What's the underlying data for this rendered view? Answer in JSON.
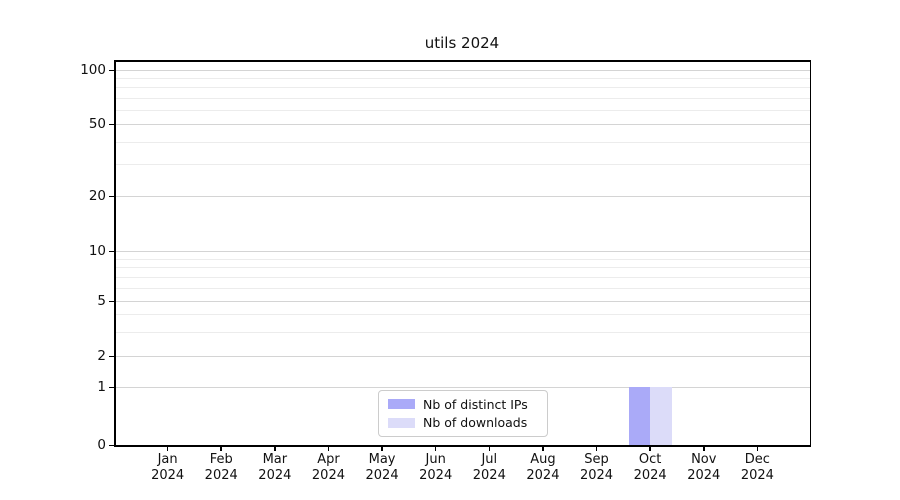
{
  "chart_data": {
    "type": "bar",
    "title": "utils 2024",
    "categories": [
      "Jan",
      "Feb",
      "Mar",
      "Apr",
      "May",
      "Jun",
      "Jul",
      "Aug",
      "Sep",
      "Oct",
      "Nov",
      "Dec"
    ],
    "x_year_label": "2024",
    "series": [
      {
        "name": "Nb of distinct IPs",
        "color": "#aaaaf8",
        "values": [
          0,
          0,
          0,
          0,
          0,
          0,
          0,
          0,
          0,
          1,
          0,
          0
        ]
      },
      {
        "name": "Nb of downloads",
        "color": "#dcdcf9",
        "values": [
          0,
          0,
          0,
          0,
          0,
          0,
          0,
          0,
          0,
          1,
          0,
          0
        ]
      }
    ],
    "y_axis": {
      "scale": "symlog",
      "major_ticks": [
        0,
        1,
        2,
        5,
        10,
        20,
        50,
        100
      ],
      "minor_gridlines": [
        3,
        4,
        6,
        7,
        8,
        9,
        30,
        40,
        60,
        70,
        80,
        90
      ],
      "range": [
        0,
        100
      ]
    },
    "grid": "horizontal-major-and-minor",
    "legend_position": "bottom-center"
  }
}
